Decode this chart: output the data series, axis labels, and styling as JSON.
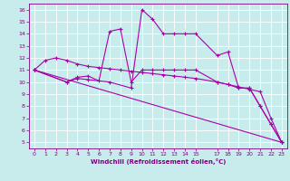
{
  "xlabel": "Windchill (Refroidissement éolien,°C)",
  "xlim": [
    -0.5,
    23.5
  ],
  "ylim": [
    4.5,
    16.5
  ],
  "xticks": [
    0,
    1,
    2,
    3,
    4,
    5,
    6,
    7,
    8,
    9,
    10,
    11,
    12,
    13,
    14,
    15,
    17,
    18,
    19,
    20,
    21,
    22,
    23
  ],
  "xticklabels": [
    "0",
    "1",
    "2",
    "3",
    "4",
    "5",
    "6",
    "7",
    "8",
    "9",
    "10",
    "11",
    "12",
    "13",
    "14",
    "15",
    "17",
    "18",
    "19",
    "20",
    "21",
    "22",
    "23"
  ],
  "yticks": [
    5,
    6,
    7,
    8,
    9,
    10,
    11,
    12,
    13,
    14,
    15,
    16
  ],
  "background_color": "#c8ecec",
  "line_color": "#aa00aa",
  "grid_color": "#aadddd",
  "lines": [
    {
      "x": [
        0,
        23
      ],
      "y": [
        11.0,
        5.0
      ]
    },
    {
      "x": [
        0,
        1,
        2,
        3,
        4,
        5,
        6,
        7,
        8,
        9,
        10,
        11,
        12,
        13,
        14,
        15,
        17,
        18,
        19,
        20,
        21,
        22,
        23
      ],
      "y": [
        11.0,
        11.8,
        12.0,
        11.8,
        11.5,
        11.3,
        11.2,
        11.1,
        11.0,
        10.9,
        10.8,
        10.7,
        10.6,
        10.5,
        10.4,
        10.3,
        10.0,
        9.8,
        9.6,
        9.4,
        9.2,
        7.0,
        5.0
      ]
    },
    {
      "x": [
        0,
        3,
        4,
        5,
        7,
        9,
        10,
        11,
        12,
        13,
        14,
        15,
        17,
        18,
        19,
        20,
        21,
        22,
        23
      ],
      "y": [
        11.0,
        10.0,
        10.3,
        10.2,
        10.0,
        9.5,
        16.0,
        15.2,
        14.0,
        14.0,
        14.0,
        14.0,
        12.2,
        12.5,
        9.5,
        9.5,
        8.0,
        6.5,
        5.0
      ]
    },
    {
      "x": [
        0,
        3,
        4,
        5,
        6,
        7,
        8,
        9,
        10,
        11,
        12,
        13,
        14,
        15,
        17,
        18,
        19,
        20,
        21,
        22,
        23
      ],
      "y": [
        11.0,
        10.0,
        10.4,
        10.5,
        10.1,
        14.2,
        14.4,
        10.0,
        11.0,
        11.0,
        11.0,
        11.0,
        11.0,
        11.0,
        10.0,
        9.8,
        9.5,
        9.5,
        8.0,
        6.5,
        5.0
      ]
    }
  ]
}
